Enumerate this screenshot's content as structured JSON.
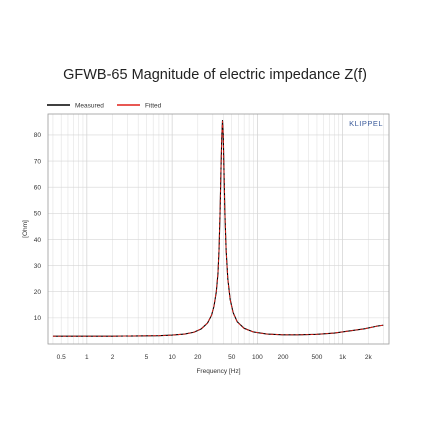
{
  "chart_data": {
    "type": "line",
    "title": "GFWB-65 Magnitude of electric impedance Z(f)",
    "xlabel": "Frequency [Hz]",
    "ylabel": "[Ohm]",
    "x_scale": "log",
    "xlim": [
      0.35,
      3500
    ],
    "ylim": [
      0,
      88
    ],
    "grid": true,
    "legend_position": "top-left",
    "brand": "KLIPPEL",
    "x_ticks": [
      {
        "value": 0.5,
        "label": "0.5"
      },
      {
        "value": 1,
        "label": "1"
      },
      {
        "value": 2,
        "label": "2"
      },
      {
        "value": 5,
        "label": "5"
      },
      {
        "value": 10,
        "label": "10"
      },
      {
        "value": 20,
        "label": "20"
      },
      {
        "value": 50,
        "label": "50"
      },
      {
        "value": 100,
        "label": "100"
      },
      {
        "value": 200,
        "label": "200"
      },
      {
        "value": 500,
        "label": "500"
      },
      {
        "value": 1000,
        "label": "1k"
      },
      {
        "value": 2000,
        "label": "2k"
      }
    ],
    "y_ticks": [
      10,
      20,
      30,
      40,
      50,
      60,
      70,
      80
    ],
    "series": [
      {
        "name": "Measured",
        "color": "#000000",
        "x": [
          0.4,
          0.7,
          1,
          2,
          4,
          7,
          10,
          14,
          18,
          22,
          26,
          29,
          31,
          33,
          34.5,
          35.5,
          36.5,
          37.5,
          38.3,
          39,
          39.8,
          40.6,
          41.6,
          43,
          45,
          48,
          52,
          58,
          70,
          90,
          130,
          200,
          300,
          500,
          800,
          1200,
          1800,
          2500,
          3000
        ],
        "y": [
          3.0,
          3.0,
          3.0,
          3.0,
          3.1,
          3.2,
          3.4,
          3.8,
          4.5,
          5.8,
          8.0,
          11.0,
          14.5,
          20.0,
          27.0,
          36.0,
          50.0,
          68.0,
          80.0,
          85.5,
          80.0,
          66.0,
          50.0,
          36.0,
          25.0,
          17.0,
          12.0,
          8.5,
          6.0,
          4.6,
          3.8,
          3.5,
          3.5,
          3.7,
          4.2,
          5.0,
          5.8,
          6.8,
          7.2
        ]
      },
      {
        "name": "Fitted",
        "color": "#e0201a",
        "x": [
          0.4,
          0.7,
          1,
          2,
          4,
          7,
          10,
          14,
          18,
          22,
          26,
          29,
          31,
          33,
          34.5,
          35.5,
          36.5,
          37.5,
          38.3,
          39,
          39.8,
          40.6,
          41.6,
          43,
          45,
          48,
          52,
          58,
          70,
          90,
          130,
          200,
          300,
          500,
          800,
          1200,
          1800,
          2500,
          3000
        ],
        "y": [
          3.0,
          3.0,
          3.0,
          3.0,
          3.1,
          3.2,
          3.4,
          3.8,
          4.5,
          5.8,
          8.0,
          11.0,
          14.6,
          20.2,
          27.2,
          36.3,
          50.5,
          68.5,
          80.3,
          85.2,
          79.6,
          65.6,
          49.7,
          35.8,
          24.8,
          16.9,
          11.9,
          8.4,
          5.9,
          4.6,
          3.8,
          3.5,
          3.5,
          3.7,
          4.2,
          5.0,
          5.8,
          6.8,
          7.2
        ]
      }
    ]
  }
}
